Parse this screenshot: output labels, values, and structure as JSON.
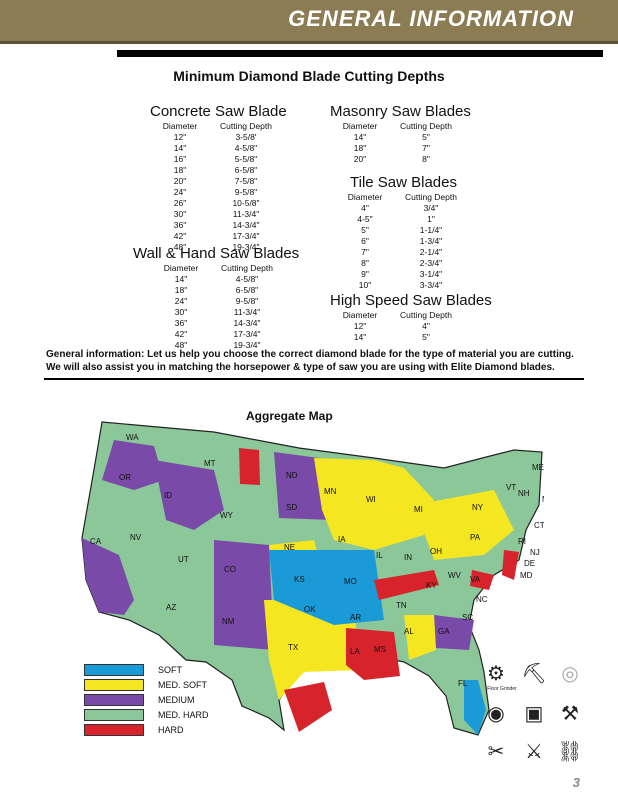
{
  "header": {
    "title": "GENERAL INFORMATION"
  },
  "heading": "Minimum Diamond Blade Cutting Depths",
  "col_headers": {
    "diameter": "Diameter",
    "depth": "Cutting Depth"
  },
  "concrete": {
    "title": "Concrete Saw Blade",
    "rows": [
      [
        "12\"",
        "3-5/8'"
      ],
      [
        "14\"",
        "4-5/8\""
      ],
      [
        "16\"",
        "5-5/8\""
      ],
      [
        "18\"",
        "6-5/8\""
      ],
      [
        "20\"",
        "7-5/8\""
      ],
      [
        "24\"",
        "9-5/8\""
      ],
      [
        "26\"",
        "10-5/8\""
      ],
      [
        "30\"",
        "11-3/4\""
      ],
      [
        "36\"",
        "14-3/4\""
      ],
      [
        "42\"",
        "17-3/4\""
      ],
      [
        "48\"",
        "19-3/4\""
      ]
    ]
  },
  "wall": {
    "title": "Wall & Hand Saw Blades",
    "rows": [
      [
        "14\"",
        "4-5/8\""
      ],
      [
        "18\"",
        "6-5/8\""
      ],
      [
        "24\"",
        "9-5/8\""
      ],
      [
        "30\"",
        "11-3/4\""
      ],
      [
        "36\"",
        "14-3/4\""
      ],
      [
        "42\"",
        "17-3/4\""
      ],
      [
        "48\"",
        "19-3/4\""
      ]
    ]
  },
  "masonry": {
    "title": "Masonry Saw Blades",
    "rows": [
      [
        "14\"",
        "5\""
      ],
      [
        "18\"",
        "7\""
      ],
      [
        "20\"",
        "8\""
      ]
    ]
  },
  "tile": {
    "title": "Tile Saw Blades",
    "rows": [
      [
        "4\"",
        "3/4\""
      ],
      [
        "4-5\"",
        "1\""
      ],
      [
        "5\"",
        "1-1/4\""
      ],
      [
        "6\"",
        "1-3/4\""
      ],
      [
        "7\"",
        "2-1/4\""
      ],
      [
        "8\"",
        "2-3/4\""
      ],
      [
        "9\"",
        "3-1/4\""
      ],
      [
        "10\"",
        "3-3/4\""
      ]
    ]
  },
  "highspeed": {
    "title": "High Speed Saw Blades",
    "rows": [
      [
        "12\"",
        "4\""
      ],
      [
        "14\"",
        "5\""
      ]
    ]
  },
  "info_text": "General information: Let us help you choose the correct diamond blade for the type of material you are cutting. We will also assist you in matching the horsepower & type of saw you are using with Elite Diamond blades.",
  "map": {
    "title": "Aggregate Map",
    "states": [
      "WA",
      "OR",
      "CA",
      "ID",
      "NV",
      "MT",
      "WY",
      "UT",
      "AZ",
      "CO",
      "NM",
      "ND",
      "SD",
      "NE",
      "KS",
      "OK",
      "TX",
      "MN",
      "IA",
      "MO",
      "AR",
      "LA",
      "WI",
      "IL",
      "MS",
      "MI",
      "IN",
      "KY",
      "TN",
      "AL",
      "OH",
      "WV",
      "GA",
      "FL",
      "SC",
      "NC",
      "VA",
      "PA",
      "NY",
      "VT",
      "NH",
      "ME",
      "MA",
      "CT",
      "RI",
      "NJ",
      "DE",
      "MD"
    ]
  },
  "legend": [
    {
      "label": "SOFT",
      "color": "#1a9ad6"
    },
    {
      "label": "MED. SOFT",
      "color": "#f5e622"
    },
    {
      "label": "MEDIUM",
      "color": "#7a4aa8"
    },
    {
      "label": "MED. HARD",
      "color": "#8cc79a"
    },
    {
      "label": "HARD",
      "color": "#d7232c"
    }
  ],
  "tools": {
    "floor_grinder": "Floor Grinder"
  },
  "page_number": "3"
}
